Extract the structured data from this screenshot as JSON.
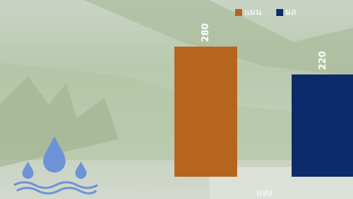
{
  "chart_data": {
    "type": "bar",
    "categories": [
      "แห่ง"
    ],
    "series": [
      {
        "name": "แผน",
        "color": "#b5651d",
        "values": [
          280
        ]
      },
      {
        "name": "ผล",
        "color": "#0d2a6b",
        "values": [
          220
        ]
      }
    ],
    "legend": "top-right"
  }
}
